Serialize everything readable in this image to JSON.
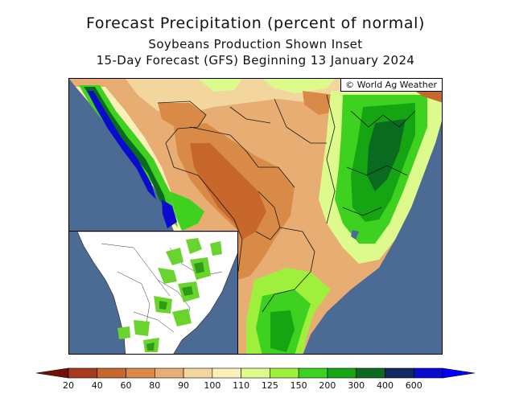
{
  "title": "Forecast Precipitation (percent of normal)",
  "subtitle": "Soybeans Production Shown Inset",
  "forecast_line": "15-Day Forecast (GFS) Beginning 13 January 2024",
  "credit": "© World Ag Weather",
  "legend": {
    "bins": [
      {
        "label": "20",
        "color": "#a63a1c"
      },
      {
        "label": "40",
        "color": "#c8672c"
      },
      {
        "label": "60",
        "color": "#d98a47"
      },
      {
        "label": "80",
        "color": "#e7ad73"
      },
      {
        "label": "90",
        "color": "#f3d69e"
      },
      {
        "label": "100",
        "color": "#fbf1b8"
      },
      {
        "label": "110",
        "color": "#dcfb8c"
      },
      {
        "label": "125",
        "color": "#9ef03c"
      },
      {
        "label": "150",
        "color": "#3fd11f"
      },
      {
        "label": "200",
        "color": "#15a512"
      },
      {
        "label": "300",
        "color": "#0a6a1f"
      },
      {
        "label": "400",
        "color": "#102a64"
      },
      {
        "label": "600",
        "color": "#0b0bd0"
      }
    ],
    "under_color": "#6e1206",
    "over_color": "#0000ff"
  },
  "colors": {
    "ocean": "#4b6b94",
    "inset_land": "#ffffff",
    "inset_soy": "#6ad42e"
  }
}
